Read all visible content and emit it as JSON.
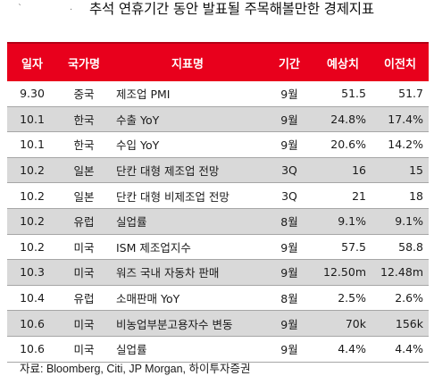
{
  "header": {
    "mark": "ˋ",
    "dot": "·",
    "title": "추석 연휴기간 동안 발표될 주목해볼만한 경제지표"
  },
  "table": {
    "columns": [
      "일자",
      "국가명",
      "지표명",
      "기간",
      "예상치",
      "이전치"
    ],
    "rows": [
      {
        "date": "9.30",
        "country": "중국",
        "indicator": "제조업 PMI",
        "period": "9월",
        "forecast": "51.5",
        "previous": "51.7"
      },
      {
        "date": "10.1",
        "country": "한국",
        "indicator": "수출 YoY",
        "period": "9월",
        "forecast": "24.8%",
        "previous": "17.4%"
      },
      {
        "date": "10.1",
        "country": "한국",
        "indicator": "수입 YoY",
        "period": "9월",
        "forecast": "20.6%",
        "previous": "14.2%"
      },
      {
        "date": "10.2",
        "country": "일본",
        "indicator": "단칸 대형 제조업 전망",
        "period": "3Q",
        "forecast": "16",
        "previous": "15"
      },
      {
        "date": "10.2",
        "country": "일본",
        "indicator": "단칸 대형 비제조업 전망",
        "period": "3Q",
        "forecast": "21",
        "previous": "18"
      },
      {
        "date": "10.2",
        "country": "유럽",
        "indicator": "실업률",
        "period": "8월",
        "forecast": "9.1%",
        "previous": "9.1%"
      },
      {
        "date": "10.2",
        "country": "미국",
        "indicator": "ISM 제조업지수",
        "period": "9월",
        "forecast": "57.5",
        "previous": "58.8"
      },
      {
        "date": "10.3",
        "country": "미국",
        "indicator": "워즈 국내 자동차 판매",
        "period": "9월",
        "forecast": "12.50m",
        "previous": "12.48m"
      },
      {
        "date": "10.4",
        "country": "유럽",
        "indicator": "소매판매 YoY",
        "period": "8월",
        "forecast": "2.5%",
        "previous": "2.6%"
      },
      {
        "date": "10.6",
        "country": "미국",
        "indicator": "비농업부분고용자수 변동",
        "period": "9월",
        "forecast": "70k",
        "previous": "156k"
      },
      {
        "date": "10.6",
        "country": "미국",
        "indicator": "실업률",
        "period": "9월",
        "forecast": "4.4%",
        "previous": "4.4%"
      }
    ]
  },
  "source": "자료: Bloomberg, Citi, JP Morgan, 하이투자증권",
  "colors": {
    "header_bg": "#e8001c",
    "shade_bg": "#d9d9d9"
  }
}
